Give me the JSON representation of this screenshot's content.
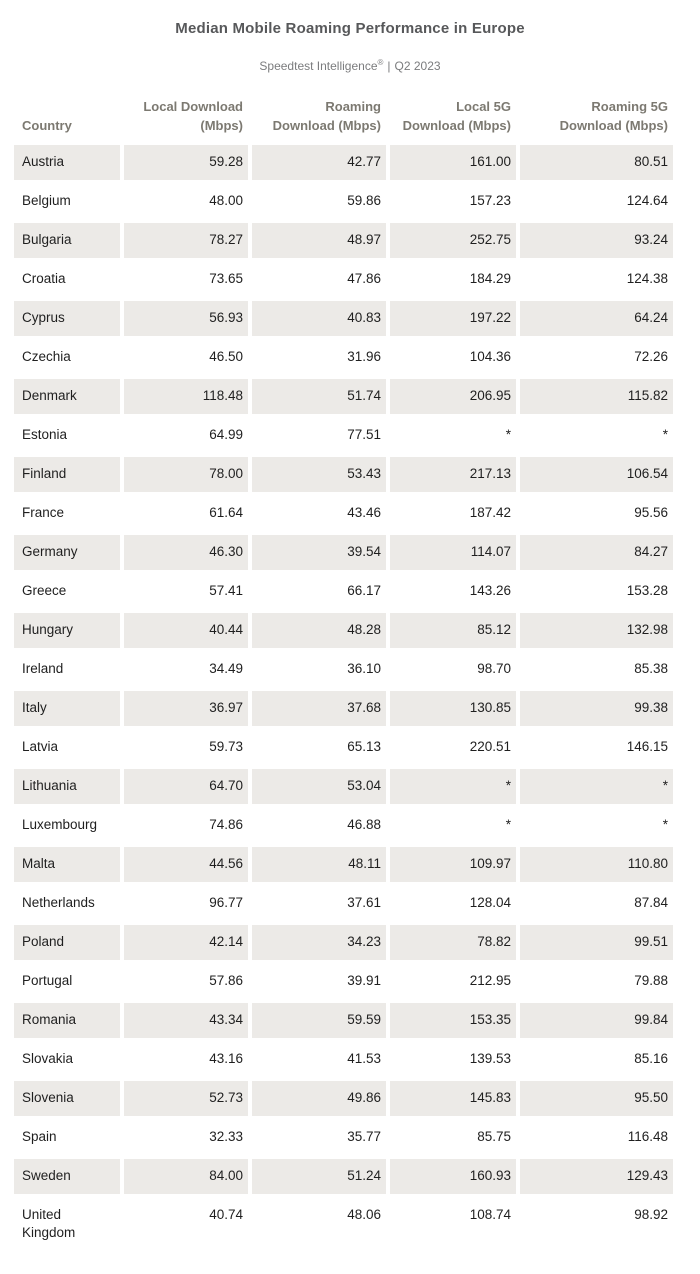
{
  "page": {
    "title": "Median Mobile Roaming Performance in Europe",
    "subtitle": {
      "brand": "Speedtest Intelligence",
      "registered_mark": "®",
      "separator": "|",
      "period": "Q2 2023"
    }
  },
  "table": {
    "header_lines": [
      "Country",
      "Local Download\n(Mbps)",
      "Roaming\nDownload (Mbps)",
      "Local 5G\nDownload (Mbps)",
      "Roaming 5G\nDownload (Mbps)"
    ]
  },
  "chart_data": {
    "type": "table",
    "title": "Median Mobile Roaming Performance in Europe",
    "subtitle": "Speedtest Intelligence® | Q2 2023",
    "units": "Mbps",
    "no_data_marker": "*",
    "columns": [
      "Country",
      "Local Download (Mbps)",
      "Roaming Download (Mbps)",
      "Local 5G Download (Mbps)",
      "Roaming 5G Download (Mbps)"
    ],
    "rows": [
      [
        "Austria",
        "59.28",
        "42.77",
        "161.00",
        "80.51"
      ],
      [
        "Belgium",
        "48.00",
        "59.86",
        "157.23",
        "124.64"
      ],
      [
        "Bulgaria",
        "78.27",
        "48.97",
        "252.75",
        "93.24"
      ],
      [
        "Croatia",
        "73.65",
        "47.86",
        "184.29",
        "124.38"
      ],
      [
        "Cyprus",
        "56.93",
        "40.83",
        "197.22",
        "64.24"
      ],
      [
        "Czechia",
        "46.50",
        "31.96",
        "104.36",
        "72.26"
      ],
      [
        "Denmark",
        "118.48",
        "51.74",
        "206.95",
        "115.82"
      ],
      [
        "Estonia",
        "64.99",
        "77.51",
        "*",
        "*"
      ],
      [
        "Finland",
        "78.00",
        "53.43",
        "217.13",
        "106.54"
      ],
      [
        "France",
        "61.64",
        "43.46",
        "187.42",
        "95.56"
      ],
      [
        "Germany",
        "46.30",
        "39.54",
        "114.07",
        "84.27"
      ],
      [
        "Greece",
        "57.41",
        "66.17",
        "143.26",
        "153.28"
      ],
      [
        "Hungary",
        "40.44",
        "48.28",
        "85.12",
        "132.98"
      ],
      [
        "Ireland",
        "34.49",
        "36.10",
        "98.70",
        "85.38"
      ],
      [
        "Italy",
        "36.97",
        "37.68",
        "130.85",
        "99.38"
      ],
      [
        "Latvia",
        "59.73",
        "65.13",
        "220.51",
        "146.15"
      ],
      [
        "Lithuania",
        "64.70",
        "53.04",
        "*",
        "*"
      ],
      [
        "Luxembourg",
        "74.86",
        "46.88",
        "*",
        "*"
      ],
      [
        "Malta",
        "44.56",
        "48.11",
        "109.97",
        "110.80"
      ],
      [
        "Netherlands",
        "96.77",
        "37.61",
        "128.04",
        "87.84"
      ],
      [
        "Poland",
        "42.14",
        "34.23",
        "78.82",
        "99.51"
      ],
      [
        "Portugal",
        "57.86",
        "39.91",
        "212.95",
        "79.88"
      ],
      [
        "Romania",
        "43.34",
        "59.59",
        "153.35",
        "99.84"
      ],
      [
        "Slovakia",
        "43.16",
        "41.53",
        "139.53",
        "85.16"
      ],
      [
        "Slovenia",
        "52.73",
        "49.86",
        "145.83",
        "95.50"
      ],
      [
        "Spain",
        "32.33",
        "35.77",
        "85.75",
        "116.48"
      ],
      [
        "Sweden",
        "84.00",
        "51.24",
        "160.93",
        "129.43"
      ],
      [
        "United Kingdom",
        "40.74",
        "48.06",
        "108.74",
        "98.92"
      ]
    ]
  },
  "colors": {
    "row_shade": "#eceae7",
    "header_text": "#7c7971",
    "cell_text": "#1f1f1f",
    "title_text": "#57585a",
    "subtitle_text": "#7b7c7e"
  }
}
